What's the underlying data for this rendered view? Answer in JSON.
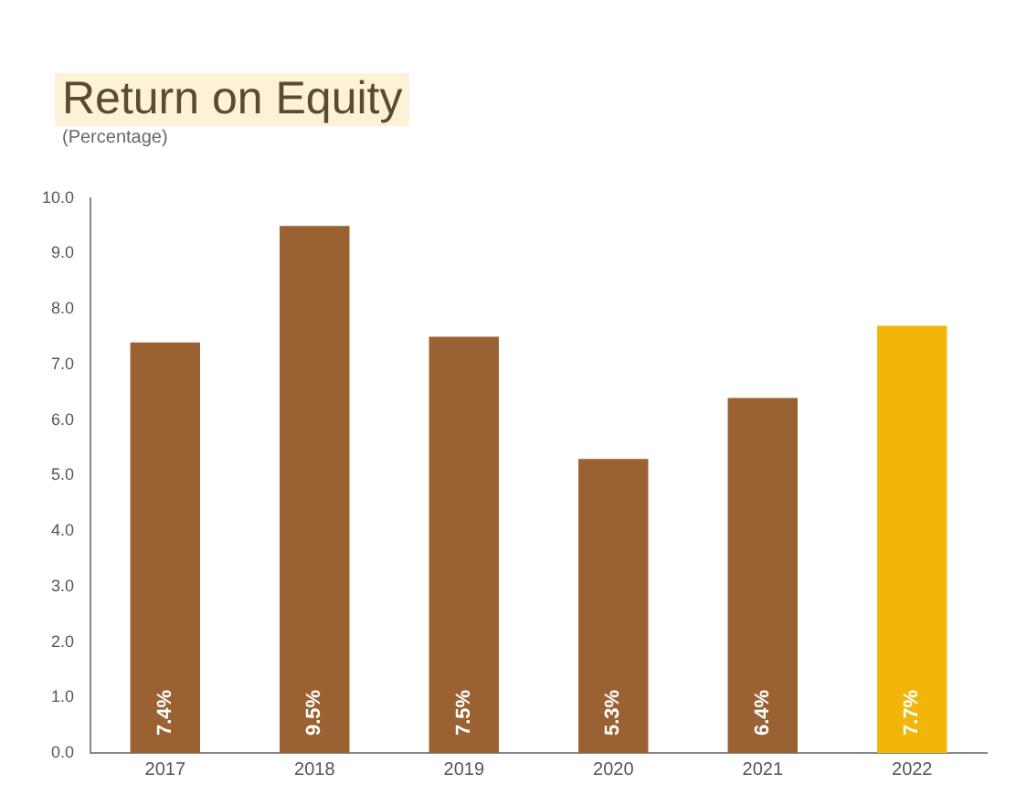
{
  "chart_data": {
    "type": "bar",
    "title": "Return on Equity",
    "ylabel": "(Percentage)",
    "categories": [
      "2017",
      "2018",
      "2019",
      "2020",
      "2021",
      "2022"
    ],
    "values": [
      7.4,
      9.5,
      7.5,
      5.3,
      6.4,
      7.7
    ],
    "colors": [
      "#9a6232",
      "#9a6232",
      "#9a6232",
      "#9a6232",
      "#9a6232",
      "#f2b50a"
    ],
    "value_labels": [
      "7.4%",
      "9.5%",
      "7.5%",
      "5.3%",
      "6.4%",
      "7.7%"
    ],
    "ylim": [
      0,
      10
    ],
    "yticks": [
      {
        "value": 0,
        "label": "0.0"
      },
      {
        "value": 1,
        "label": "1.0"
      },
      {
        "value": 2,
        "label": "2.0"
      },
      {
        "value": 3,
        "label": "3.0"
      },
      {
        "value": 4,
        "label": "4.0"
      },
      {
        "value": 5,
        "label": "5.0"
      },
      {
        "value": 6,
        "label": "6.0"
      },
      {
        "value": 7,
        "label": "7.0"
      },
      {
        "value": 8,
        "label": "8.0"
      },
      {
        "value": 9,
        "label": "9.0"
      },
      {
        "value": 10,
        "label": "10.0"
      }
    ],
    "grid": false,
    "legend": false
  }
}
